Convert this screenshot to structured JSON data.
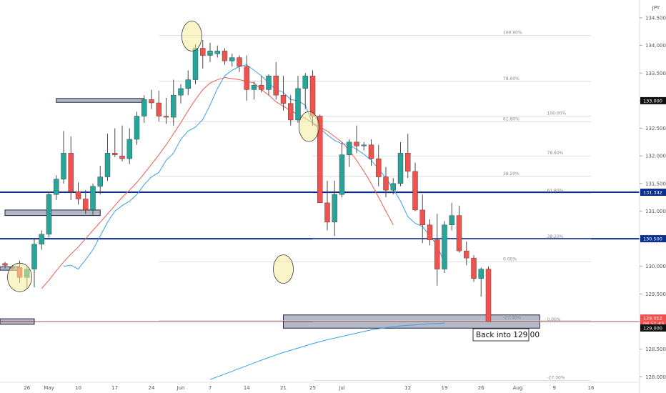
{
  "chart_data": {
    "type": "candlestick",
    "currency_label": "JPY",
    "annotation": "Back into 129.00",
    "ylim": [
      127.9,
      134.72
    ],
    "grid": false,
    "x_ticks": [
      {
        "label": "26",
        "i": 3
      },
      {
        "label": "May",
        "i": 6
      },
      {
        "label": "10",
        "i": 10
      },
      {
        "label": "17",
        "i": 15
      },
      {
        "label": "24",
        "i": 20
      },
      {
        "label": "Jun",
        "i": 24
      },
      {
        "label": "7",
        "i": 28
      },
      {
        "label": "14",
        "i": 33
      },
      {
        "label": "21",
        "i": 38
      },
      {
        "label": "25",
        "i": 42
      },
      {
        "label": "Jul",
        "i": 46
      },
      {
        "label": "12",
        "i": 55
      },
      {
        "label": "19",
        "i": 60
      },
      {
        "label": "26",
        "i": 65
      },
      {
        "label": "Aug",
        "i": 70
      },
      {
        "label": "9",
        "i": 75
      },
      {
        "label": "16",
        "i": 80
      }
    ],
    "y_ticks": [
      "134.500",
      "134.000",
      "133.500",
      "133.000",
      "132.500",
      "132.000",
      "131.500",
      "131.000",
      "130.500",
      "130.000",
      "129.500",
      "129.000",
      "128.500",
      "128.000"
    ],
    "price_tags": [
      {
        "value": 133.0,
        "label": "133.000",
        "color": "#111111"
      },
      {
        "value": 131.342,
        "label": "131.342",
        "color": "#0d2f8c"
      },
      {
        "value": 130.5,
        "label": "130.500",
        "color": "#0d2f8c"
      },
      {
        "value": 129.012,
        "label": "129.012",
        "label2": "06:51:43",
        "color": "#ef5350"
      },
      {
        "value": 129.0,
        "label": "129.000",
        "color": "#111111"
      }
    ],
    "horizontal_lines": [
      {
        "value": 131.342,
        "color": "#0d2f8c"
      },
      {
        "value": 130.5,
        "color": "#0d2f8c"
      },
      {
        "value": 129.0,
        "color": "#7a1f1f"
      }
    ],
    "zones": [
      {
        "i0": 7,
        "i1": 19,
        "top": 133.04,
        "bottom": 132.97
      },
      {
        "i0": 0,
        "i1": 13,
        "top": 131.02,
        "bottom": 130.92
      },
      {
        "i0": 38,
        "i1": 73,
        "top": 129.12,
        "bottom": 128.88
      },
      {
        "i0": -1,
        "i1": 4,
        "top": 129.05,
        "bottom": 128.95
      },
      {
        "i0": -1,
        "i1": 2,
        "top": 129.99,
        "bottom": 129.93
      }
    ],
    "fib_sets": [
      {
        "i0": 21,
        "i1": 80,
        "label_i": 68,
        "levels": [
          {
            "value": 134.18,
            "label": "100.00%"
          },
          {
            "value": 133.35,
            "label": "78.60%"
          },
          {
            "value": 132.62,
            "label": "61.80%"
          },
          {
            "value": 131.63,
            "label": "38.20%"
          },
          {
            "value": 130.08,
            "label": "0.00%"
          },
          {
            "value": 129.02,
            "label": "-27.00%"
          }
        ]
      },
      {
        "i0": 42,
        "i1": 80,
        "label_i": 74,
        "levels": [
          {
            "value": 132.72,
            "label": "100.00%"
          },
          {
            "value": 132.0,
            "label": "78.60%"
          },
          {
            "value": 131.32,
            "label": "61.80%"
          },
          {
            "value": 130.49,
            "label": "38.20%"
          },
          {
            "value": 128.99,
            "label": "0.00%"
          },
          {
            "value": 127.93,
            "label": "-27.00%"
          }
        ]
      }
    ],
    "ellipses": [
      {
        "i": 2,
        "value": 129.8,
        "rx": 17,
        "ry": 20
      },
      {
        "i": 25.5,
        "value": 134.17,
        "rx": 14,
        "ry": 21
      },
      {
        "i": 41.5,
        "value": 132.53,
        "rx": 14,
        "ry": 21
      },
      {
        "i": 38,
        "value": 129.95,
        "rx": 14,
        "ry": 20
      }
    ],
    "ema_fast": [
      130.0,
      130.02,
      129.95,
      130.12,
      130.3,
      130.55,
      130.8,
      131.0,
      131.1,
      131.18,
      131.3,
      131.48,
      131.62,
      131.7,
      131.92,
      132.05,
      132.3,
      132.45,
      132.52,
      132.66,
      132.92,
      133.22,
      133.45,
      133.55,
      133.62,
      133.65,
      133.55,
      133.45,
      133.32,
      133.2,
      133.15,
      133.02,
      133.0,
      132.92,
      132.58,
      132.5,
      132.38,
      132.28,
      132.22,
      132.2,
      132.12,
      132.03,
      131.92,
      131.76,
      131.6,
      131.4,
      131.18,
      130.9,
      130.78,
      130.72,
      130.55,
      130.38,
      130.05
    ],
    "ema_fast_start": 8,
    "ema_slow": [
      129.6,
      129.75,
      129.92,
      130.08,
      130.22,
      130.35,
      130.5,
      130.65,
      130.8,
      130.95,
      131.1,
      131.25,
      131.38,
      131.52,
      131.68,
      131.85,
      132.02,
      132.2,
      132.4,
      132.6,
      132.82,
      133.02,
      133.2,
      133.32,
      133.38,
      133.42,
      133.4,
      133.38,
      133.35,
      133.32,
      133.2,
      133.1,
      132.98,
      132.9,
      132.82,
      132.75,
      132.68,
      132.6,
      132.52,
      132.45,
      132.35,
      132.25,
      132.1,
      131.92,
      131.72,
      131.5,
      131.25,
      131.0,
      130.75
    ],
    "ema_slow_start": 5,
    "sma_long": [
      127.95,
      128.05,
      128.15,
      128.25,
      128.35,
      128.44,
      128.52,
      128.6,
      128.67,
      128.73,
      128.79,
      128.85,
      128.89,
      128.92,
      128.94,
      128.96,
      128.97
    ],
    "sma_long_step": 2,
    "sma_long_start": 28,
    "candles": [
      [
        130.05,
        130.08,
        129.96,
        130.02
      ],
      [
        129.98,
        130.02,
        129.92,
        129.97
      ],
      [
        129.98,
        130.1,
        129.7,
        129.8
      ],
      [
        129.8,
        129.98,
        129.6,
        129.95
      ],
      [
        129.95,
        130.5,
        129.62,
        130.4
      ],
      [
        130.4,
        130.65,
        130.3,
        130.58
      ],
      [
        130.58,
        131.35,
        130.52,
        131.3
      ],
      [
        131.3,
        131.65,
        131.2,
        131.58
      ],
      [
        131.58,
        132.45,
        131.5,
        132.05
      ],
      [
        132.05,
        132.35,
        131.2,
        131.35
      ],
      [
        131.35,
        131.52,
        131.12,
        131.22
      ],
      [
        131.22,
        131.38,
        130.95,
        131.02
      ],
      [
        131.02,
        131.5,
        130.92,
        131.45
      ],
      [
        131.45,
        131.82,
        131.3,
        131.62
      ],
      [
        131.62,
        132.4,
        131.55,
        132.05
      ],
      [
        132.05,
        132.5,
        131.98,
        132.02
      ],
      [
        132.0,
        132.55,
        131.9,
        131.95
      ],
      [
        131.95,
        132.5,
        131.85,
        132.3
      ],
      [
        132.3,
        132.8,
        132.2,
        132.72
      ],
      [
        132.72,
        133.1,
        132.6,
        133.02
      ],
      [
        133.02,
        133.2,
        132.85,
        132.96
      ],
      [
        132.96,
        133.18,
        132.62,
        132.72
      ],
      [
        132.72,
        133.05,
        132.58,
        132.7
      ],
      [
        132.7,
        133.38,
        132.55,
        133.1
      ],
      [
        133.1,
        133.3,
        132.95,
        133.22
      ],
      [
        133.22,
        133.55,
        133.1,
        133.38
      ],
      [
        133.38,
        134.02,
        133.3,
        133.95
      ],
      [
        133.95,
        134.1,
        133.58,
        133.82
      ],
      [
        133.82,
        134.05,
        133.7,
        133.9
      ],
      [
        133.85,
        134.0,
        133.78,
        133.9
      ],
      [
        133.9,
        133.95,
        133.65,
        133.72
      ],
      [
        133.72,
        133.85,
        133.62,
        133.78
      ],
      [
        133.78,
        133.82,
        133.52,
        133.62
      ],
      [
        133.62,
        133.82,
        133.0,
        133.2
      ],
      [
        133.2,
        133.35,
        133.02,
        133.28
      ],
      [
        133.28,
        133.45,
        133.15,
        133.2
      ],
      [
        133.2,
        133.48,
        133.1,
        133.45
      ],
      [
        133.45,
        133.7,
        133.02,
        133.1
      ],
      [
        133.1,
        133.45,
        132.82,
        132.95
      ],
      [
        132.95,
        133.1,
        132.55,
        132.65
      ],
      [
        132.65,
        133.45,
        132.6,
        133.22
      ],
      [
        133.22,
        133.5,
        132.85,
        133.45
      ],
      [
        133.45,
        133.55,
        132.55,
        132.72
      ],
      [
        132.72,
        132.75,
        131.15,
        131.15
      ],
      [
        131.15,
        131.55,
        130.65,
        130.8
      ],
      [
        130.8,
        131.55,
        130.55,
        131.3
      ],
      [
        131.3,
        132.25,
        131.25,
        132.02
      ],
      [
        132.02,
        132.3,
        131.8,
        132.25
      ],
      [
        132.25,
        132.55,
        132.05,
        132.18
      ],
      [
        132.18,
        132.25,
        132.1,
        132.2
      ],
      [
        132.2,
        132.3,
        131.82,
        131.95
      ],
      [
        131.95,
        132.2,
        131.45,
        131.62
      ],
      [
        131.62,
        131.8,
        131.25,
        131.38
      ],
      [
        131.38,
        131.6,
        131.3,
        131.5
      ],
      [
        131.5,
        132.25,
        131.45,
        132.05
      ],
      [
        132.05,
        132.4,
        131.6,
        131.72
      ],
      [
        131.72,
        131.88,
        131.0,
        131.02
      ],
      [
        131.02,
        131.3,
        130.42,
        130.75
      ],
      [
        130.75,
        130.85,
        130.38,
        130.48
      ],
      [
        130.48,
        130.95,
        129.65,
        129.95
      ],
      [
        129.95,
        130.82,
        129.88,
        130.75
      ],
      [
        130.75,
        131.15,
        130.65,
        130.92
      ],
      [
        130.92,
        131.1,
        130.25,
        130.28
      ],
      [
        130.28,
        130.45,
        130.02,
        130.15
      ],
      [
        130.15,
        130.2,
        129.72,
        129.78
      ],
      [
        129.78,
        129.98,
        129.45,
        129.95
      ],
      [
        129.95,
        130.0,
        129.05,
        129.0
      ]
    ]
  }
}
